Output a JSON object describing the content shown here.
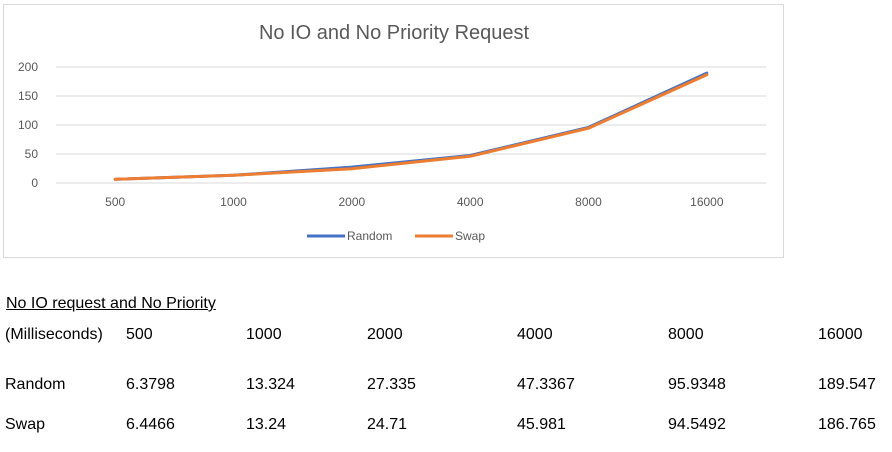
{
  "chart_data": {
    "type": "line",
    "title": "No IO and No Priority Request",
    "categories": [
      "500",
      "1000",
      "2000",
      "4000",
      "8000",
      "16000"
    ],
    "series": [
      {
        "name": "Random",
        "values": [
          6.3798,
          13.324,
          27.335,
          47.3367,
          95.9348,
          189.547
        ],
        "color": "#4472C4"
      },
      {
        "name": "Swap",
        "values": [
          6.4466,
          13.24,
          24.71,
          45.981,
          94.5492,
          186.765
        ],
        "color": "#ED7D31"
      }
    ],
    "yticks": [
      "0",
      "50",
      "100",
      "150",
      "200"
    ],
    "ylim": [
      0,
      200
    ],
    "xlabel": "",
    "ylabel": "",
    "legend_position": "bottom"
  },
  "table": {
    "title": "No IO request and No Priority",
    "header": [
      " (Milliseconds)",
      "500",
      "1000",
      "2000",
      "4000",
      "8000",
      "16000"
    ],
    "rows": [
      [
        "Random",
        "6.3798",
        "13.324",
        "27.335",
        "47.3367",
        "95.9348",
        "189.547"
      ],
      [
        "Swap",
        "6.4466",
        "13.24",
        "24.71",
        "45.981",
        "94.5492",
        "186.765"
      ]
    ]
  }
}
